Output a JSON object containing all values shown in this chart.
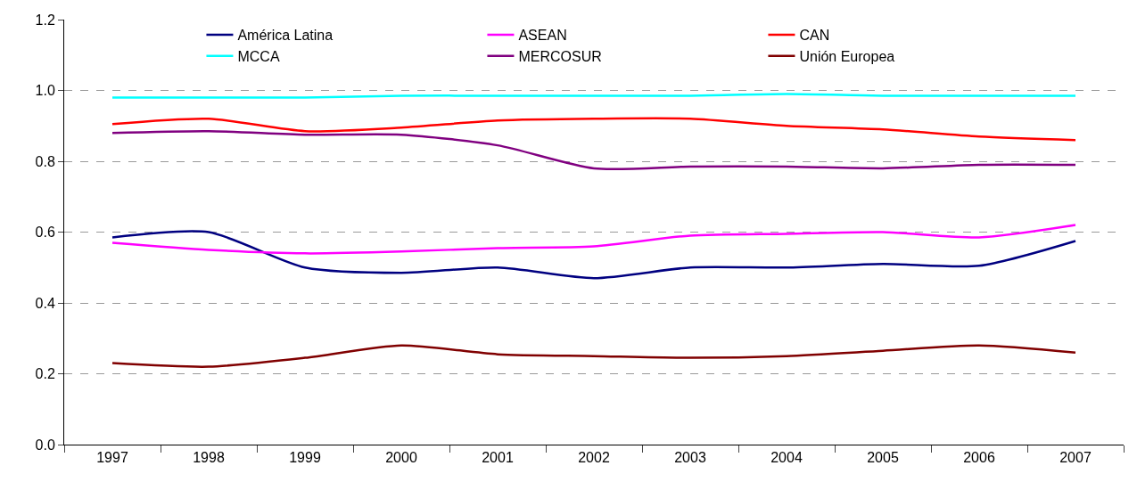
{
  "chart_data": {
    "type": "line",
    "categories": [
      "1997",
      "1998",
      "1999",
      "2000",
      "2001",
      "2002",
      "2003",
      "2004",
      "2005",
      "2006",
      "2007"
    ],
    "series": [
      {
        "name": "América Latina",
        "color": "#000080",
        "values": [
          0.585,
          0.6,
          0.5,
          0.485,
          0.5,
          0.47,
          0.5,
          0.5,
          0.51,
          0.505,
          0.575
        ]
      },
      {
        "name": "ASEAN",
        "color": "#ff00ff",
        "values": [
          0.57,
          0.55,
          0.54,
          0.545,
          0.555,
          0.56,
          0.59,
          0.595,
          0.6,
          0.585,
          0.62
        ]
      },
      {
        "name": "CAN",
        "color": "#ff0000",
        "values": [
          0.905,
          0.92,
          0.885,
          0.895,
          0.915,
          0.92,
          0.92,
          0.9,
          0.89,
          0.87,
          0.86
        ]
      },
      {
        "name": "MCCA",
        "color": "#00ffff",
        "values": [
          0.98,
          0.98,
          0.98,
          0.985,
          0.985,
          0.985,
          0.985,
          0.99,
          0.985,
          0.985,
          0.985
        ]
      },
      {
        "name": "MERCOSUR",
        "color": "#800080",
        "values": [
          0.88,
          0.885,
          0.875,
          0.875,
          0.845,
          0.78,
          0.785,
          0.785,
          0.78,
          0.79,
          0.79
        ]
      },
      {
        "name": "Unión Europea",
        "color": "#800000",
        "values": [
          0.23,
          0.22,
          0.245,
          0.28,
          0.255,
          0.25,
          0.245,
          0.25,
          0.265,
          0.28,
          0.26
        ]
      }
    ],
    "ylim": [
      0,
      1.2
    ],
    "yticks": [
      {
        "value": 0,
        "label": "0.0"
      },
      {
        "value": 0.2,
        "label": "0.2"
      },
      {
        "value": 0.4,
        "label": "0.4"
      },
      {
        "value": 0.6,
        "label": "0.6"
      },
      {
        "value": 0.8,
        "label": "0.8"
      },
      {
        "value": 1,
        "label": "1.0"
      },
      {
        "value": 1.2,
        "label": "1.2"
      }
    ],
    "grid": "y",
    "legend": "top",
    "marker": "none",
    "line_style": "solid"
  }
}
